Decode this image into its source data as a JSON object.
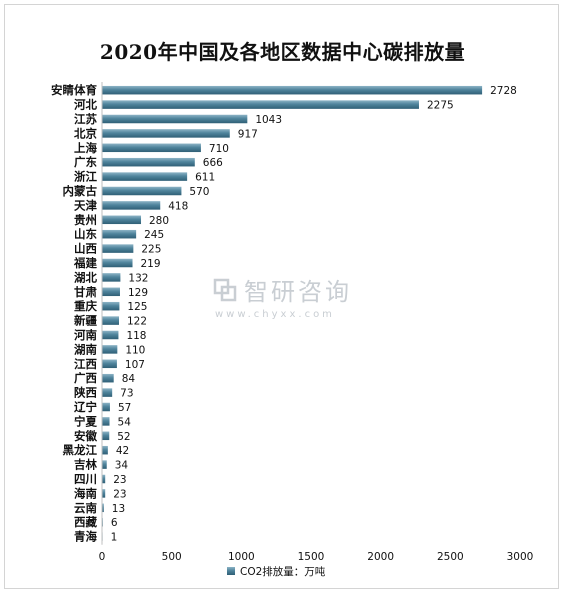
{
  "chart_data": {
    "type": "bar",
    "orientation": "horizontal",
    "title": "2020年中国及各地区数据中心碳排放量",
    "categories": [
      "安睛体育",
      "河北",
      "江苏",
      "北京",
      "上海",
      "广东",
      "浙江",
      "内蒙古",
      "天津",
      "贵州",
      "山东",
      "山西",
      "福建",
      "湖北",
      "甘肃",
      "重庆",
      "新疆",
      "河南",
      "湖南",
      "江西",
      "广西",
      "陕西",
      "辽宁",
      "宁夏",
      "安徽",
      "黑龙江",
      "吉林",
      "四川",
      "海南",
      "云南",
      "西藏",
      "青海"
    ],
    "series": [
      {
        "name": "CO2排放量：万吨",
        "values": [
          2728,
          2275,
          1043,
          917,
          710,
          666,
          611,
          570,
          418,
          280,
          245,
          225,
          219,
          132,
          129,
          125,
          122,
          118,
          110,
          107,
          84,
          73,
          57,
          54,
          52,
          42,
          34,
          23,
          23,
          13,
          6,
          1
        ]
      }
    ],
    "xlim": [
      0,
      3000
    ],
    "xticks": [
      0,
      500,
      1000,
      1500,
      2000,
      2500,
      3000
    ],
    "grid": false,
    "legend_position": "bottom",
    "bar_color": "#4a7f97"
  },
  "watermark": {
    "text": "智研咨询",
    "url": "www.chyxx.com",
    "color": "#c9ced3"
  }
}
